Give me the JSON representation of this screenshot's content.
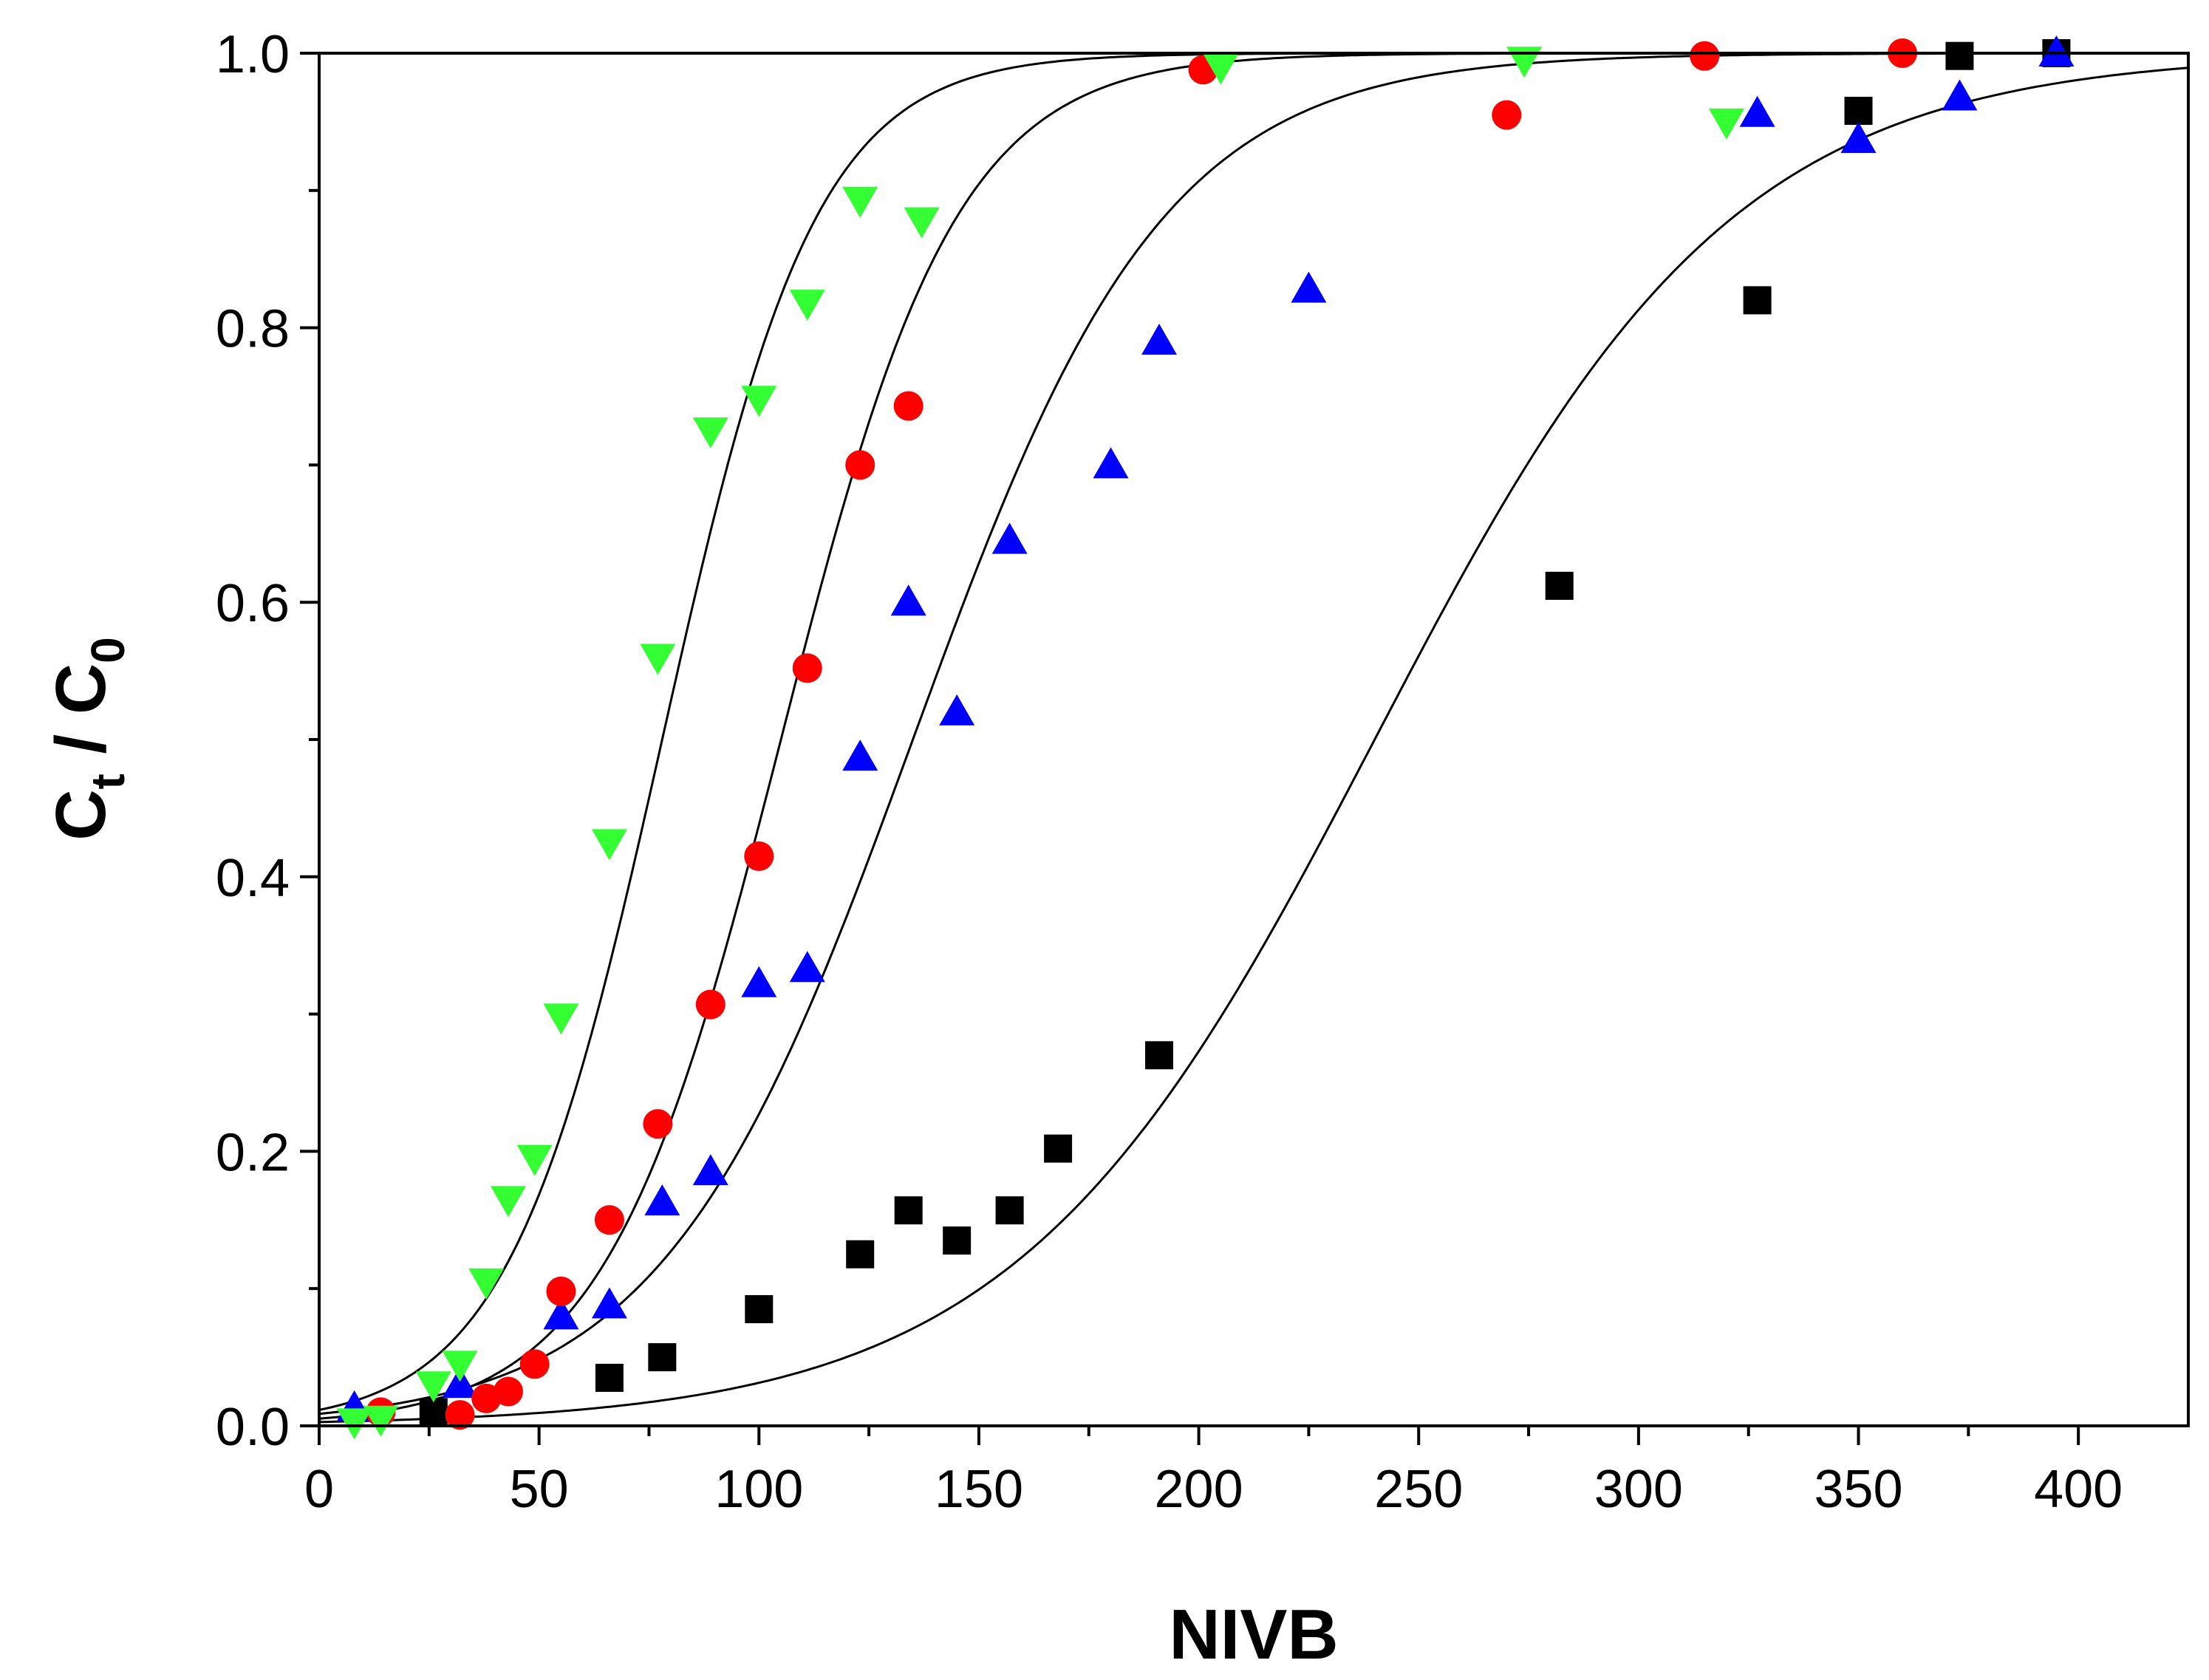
{
  "chart_data": {
    "type": "scatter",
    "title": "",
    "xlabel": "NIVB",
    "ylabel": {
      "main": "C",
      "sub1": "t",
      "sep": " / C",
      "sub2": "0"
    },
    "xlim": [
      0,
      425
    ],
    "ylim": [
      0,
      1.0
    ],
    "x_ticks": [
      0,
      50,
      100,
      150,
      200,
      250,
      300,
      350,
      400
    ],
    "y_ticks": [
      0.0,
      0.2,
      0.4,
      0.6,
      0.8,
      1.0
    ],
    "x_tick_labels": [
      "0",
      "50",
      "100",
      "150",
      "200",
      "250",
      "300",
      "350",
      "400"
    ],
    "y_tick_labels": [
      "0.0",
      "0.2",
      "0.4",
      "0.6",
      "0.8",
      "1.0"
    ],
    "grid": false,
    "legend": "none",
    "series": [
      {
        "name": "black-squares",
        "marker": "square",
        "color": "#000000",
        "points": [
          [
            26,
            0.01
          ],
          [
            66,
            0.035
          ],
          [
            78,
            0.05
          ],
          [
            100,
            0.085
          ],
          [
            123,
            0.125
          ],
          [
            134,
            0.157
          ],
          [
            145,
            0.135
          ],
          [
            157,
            0.157
          ],
          [
            168,
            0.202
          ],
          [
            191,
            0.27
          ],
          [
            282,
            0.612
          ],
          [
            327,
            0.82
          ],
          [
            350,
            0.958
          ],
          [
            373,
            0.998
          ],
          [
            395,
            1.0
          ]
        ],
        "fit": {
          "model": "logistic",
          "x50": 240,
          "k": 0.0245,
          "y0": 0.0
        }
      },
      {
        "name": "blue-triangles",
        "marker": "triangle-up",
        "color": "#0000ff",
        "points": [
          [
            8,
            0.013
          ],
          [
            32,
            0.03
          ],
          [
            55,
            0.08
          ],
          [
            66,
            0.088
          ],
          [
            78,
            0.163
          ],
          [
            89,
            0.185
          ],
          [
            100,
            0.322
          ],
          [
            111,
            0.333
          ],
          [
            123,
            0.487
          ],
          [
            134,
            0.6
          ],
          [
            145,
            0.52
          ],
          [
            157,
            0.645
          ],
          [
            180,
            0.7
          ],
          [
            191,
            0.79
          ],
          [
            225,
            0.828
          ],
          [
            327,
            0.956
          ],
          [
            350,
            0.937
          ],
          [
            373,
            0.968
          ],
          [
            395,
            1.0
          ]
        ],
        "fit": {
          "model": "logistic",
          "x50": 135,
          "k": 0.035,
          "y0": 0.0
        }
      },
      {
        "name": "red-circles",
        "marker": "circle",
        "color": "#ff0000",
        "points": [
          [
            14,
            0.01
          ],
          [
            32,
            0.008
          ],
          [
            38,
            0.02
          ],
          [
            43,
            0.025
          ],
          [
            49,
            0.045
          ],
          [
            55,
            0.098
          ],
          [
            66,
            0.15
          ],
          [
            77,
            0.22
          ],
          [
            89,
            0.307
          ],
          [
            100,
            0.415
          ],
          [
            111,
            0.552
          ],
          [
            123,
            0.7
          ],
          [
            134,
            0.743
          ],
          [
            201,
            0.988
          ],
          [
            270,
            0.955
          ],
          [
            315,
            0.998
          ],
          [
            360,
            1.0
          ]
        ],
        "fit": {
          "model": "logistic",
          "x50": 105,
          "k": 0.05,
          "y0": 0.0
        }
      },
      {
        "name": "green-triangles",
        "marker": "triangle-down",
        "color": "#33ff33",
        "points": [
          [
            8,
            0.003
          ],
          [
            14,
            0.005
          ],
          [
            26,
            0.03
          ],
          [
            32,
            0.045
          ],
          [
            38,
            0.105
          ],
          [
            43,
            0.165
          ],
          [
            49,
            0.195
          ],
          [
            55,
            0.298
          ],
          [
            66,
            0.425
          ],
          [
            77,
            0.56
          ],
          [
            89,
            0.725
          ],
          [
            100,
            0.748
          ],
          [
            111,
            0.818
          ],
          [
            123,
            0.893
          ],
          [
            137,
            0.878
          ],
          [
            205,
            0.99
          ],
          [
            274,
            0.995
          ],
          [
            320,
            0.95
          ]
        ],
        "fit": {
          "model": "logistic",
          "x50": 78,
          "k": 0.057,
          "y0": 0.0
        }
      }
    ]
  }
}
